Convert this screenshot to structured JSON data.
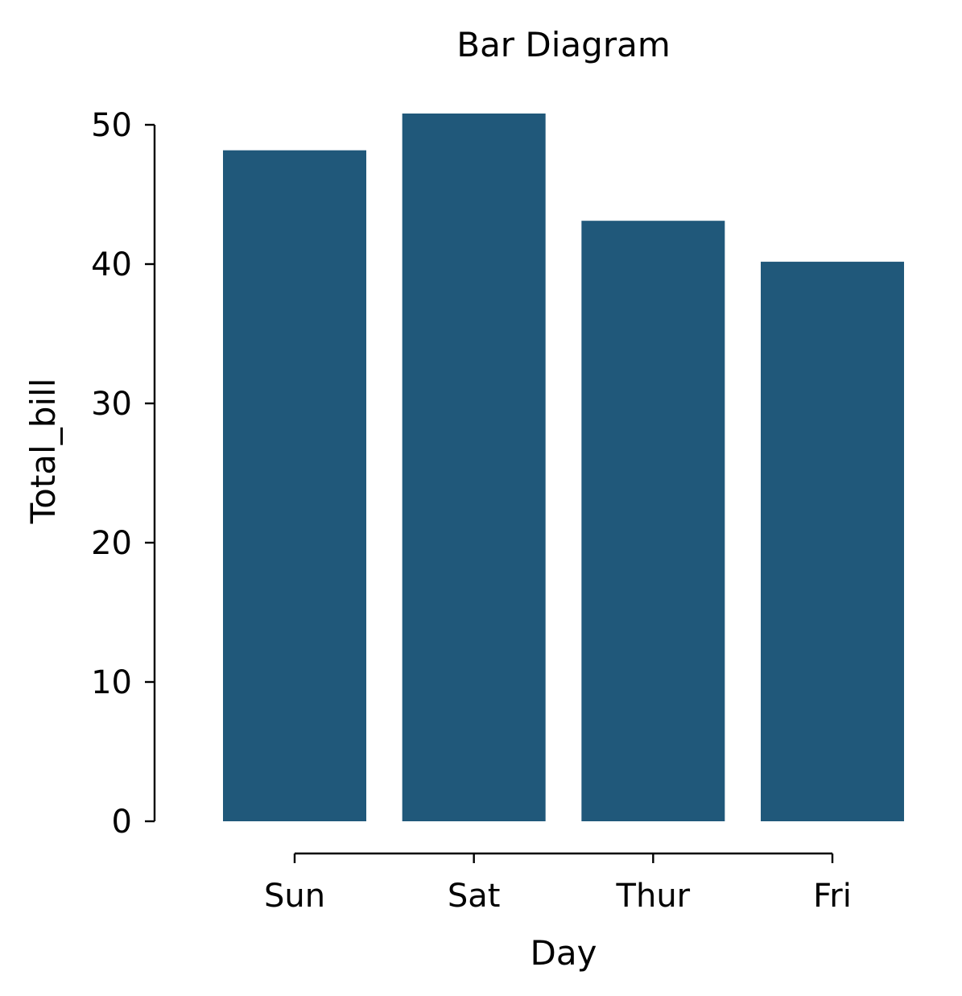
{
  "chart_data": {
    "type": "bar",
    "title": "Bar Diagram",
    "xlabel": "Day",
    "ylabel": "Total_bill",
    "categories": [
      "Sun",
      "Sat",
      "Thur",
      "Fri"
    ],
    "values": [
      48.17,
      50.81,
      43.11,
      40.17
    ],
    "ylim": [
      0,
      50
    ],
    "yticks": [
      0,
      10,
      20,
      30,
      40,
      50
    ],
    "bar_color": "#20587a",
    "grid": false,
    "legend": "none"
  }
}
